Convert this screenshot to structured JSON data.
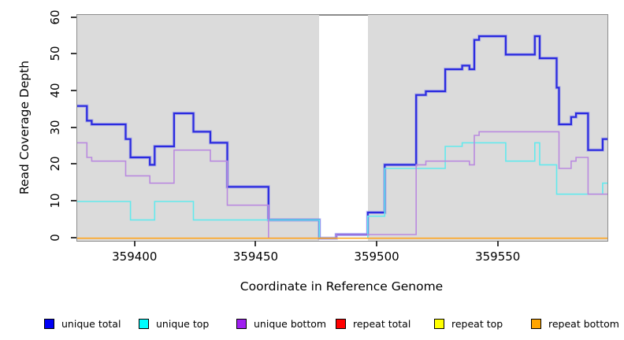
{
  "y_axis": {
    "label": "Read Coverage Depth",
    "ticks": [
      0,
      10,
      20,
      30,
      40,
      50,
      60
    ]
  },
  "x_axis": {
    "label": "Coordinate in Reference Genome",
    "ticks": [
      359400,
      359450,
      359500,
      359550
    ]
  },
  "colors": {
    "plot_background": "#dbdbdb",
    "box_border": "#8c8c8c",
    "highlight_band": "#ffffff",
    "unique_total": "#0000f5",
    "unique_top": "#00ffff",
    "unique_bottom": "#a020f0",
    "repeat_total": "#ff0000",
    "repeat_top": "#ffff00",
    "repeat_bottom": "#ffa500"
  },
  "legend": {
    "items": [
      {
        "label": "unique total",
        "color": "#0000f5"
      },
      {
        "label": "unique top",
        "color": "#00ffff"
      },
      {
        "label": "unique bottom",
        "color": "#a020f0"
      },
      {
        "label": "repeat total",
        "color": "#ff0000"
      },
      {
        "label": "repeat top",
        "color": "#ffff00"
      },
      {
        "label": "repeat bottom",
        "color": "#ffa500"
      }
    ]
  },
  "chart_data": {
    "type": "line",
    "step": true,
    "title": "",
    "xlabel": "Coordinate in Reference Genome",
    "ylabel": "Read Coverage Depth",
    "xlim": [
      359376,
      359595
    ],
    "ylim": [
      0,
      60
    ],
    "grid": false,
    "legend_position": "bottom",
    "highlight_region": {
      "x0": 359476,
      "x1": 359496,
      "color": "#ffffff"
    },
    "series": [
      {
        "name": "unique total",
        "line_color": "#2b2bdf",
        "halo_color": "#8585ee",
        "width": 2.2,
        "points": [
          [
            359376,
            36
          ],
          [
            359380,
            32
          ],
          [
            359382,
            31
          ],
          [
            359396,
            27
          ],
          [
            359398,
            22
          ],
          [
            359406,
            20
          ],
          [
            359408,
            25
          ],
          [
            359416,
            34
          ],
          [
            359424,
            29
          ],
          [
            359431,
            26
          ],
          [
            359438,
            14
          ],
          [
            359455,
            5
          ],
          [
            359476,
            0
          ],
          [
            359483,
            1
          ],
          [
            359496,
            7
          ],
          [
            359503,
            20
          ],
          [
            359516,
            39
          ],
          [
            359520,
            40
          ],
          [
            359528,
            46
          ],
          [
            359535,
            47
          ],
          [
            359538,
            46
          ],
          [
            359540,
            54
          ],
          [
            359542,
            55
          ],
          [
            359553,
            50
          ],
          [
            359565,
            55
          ],
          [
            359567,
            49
          ],
          [
            359574,
            41
          ],
          [
            359575,
            31
          ],
          [
            359580,
            33
          ],
          [
            359582,
            34
          ],
          [
            359587,
            24
          ],
          [
            359593,
            27
          ]
        ]
      },
      {
        "name": "unique top",
        "line_color": "#63e9ed",
        "width": 1.6,
        "points": [
          [
            359376,
            10
          ],
          [
            359398,
            5
          ],
          [
            359408,
            10
          ],
          [
            359424,
            5
          ],
          [
            359476,
            0
          ],
          [
            359496,
            6
          ],
          [
            359503,
            19
          ],
          [
            359528,
            25
          ],
          [
            359535,
            26
          ],
          [
            359553,
            21
          ],
          [
            359565,
            26
          ],
          [
            359567,
            20
          ],
          [
            359574,
            12
          ],
          [
            359593,
            15
          ]
        ]
      },
      {
        "name": "unique bottom",
        "line_color": "#ba8adf",
        "width": 1.6,
        "points": [
          [
            359376,
            26
          ],
          [
            359380,
            22
          ],
          [
            359382,
            21
          ],
          [
            359396,
            17
          ],
          [
            359406,
            15
          ],
          [
            359416,
            24
          ],
          [
            359431,
            21
          ],
          [
            359438,
            9
          ],
          [
            359455,
            0
          ],
          [
            359483,
            1
          ],
          [
            359516,
            20
          ],
          [
            359520,
            21
          ],
          [
            359538,
            20
          ],
          [
            359540,
            28
          ],
          [
            359542,
            29
          ],
          [
            359575,
            19
          ],
          [
            359580,
            21
          ],
          [
            359582,
            22
          ],
          [
            359587,
            12
          ]
        ]
      },
      {
        "name": "repeat total",
        "line_color": "#e03030",
        "width": 1.4,
        "points": [
          [
            359376,
            0
          ]
        ]
      },
      {
        "name": "repeat top",
        "line_color": "#f5e800",
        "width": 1.4,
        "points": [
          [
            359376,
            0
          ]
        ]
      },
      {
        "name": "repeat bottom",
        "line_color": "#ffa51e",
        "width": 1.6,
        "points": [
          [
            359376,
            0
          ]
        ]
      }
    ]
  }
}
